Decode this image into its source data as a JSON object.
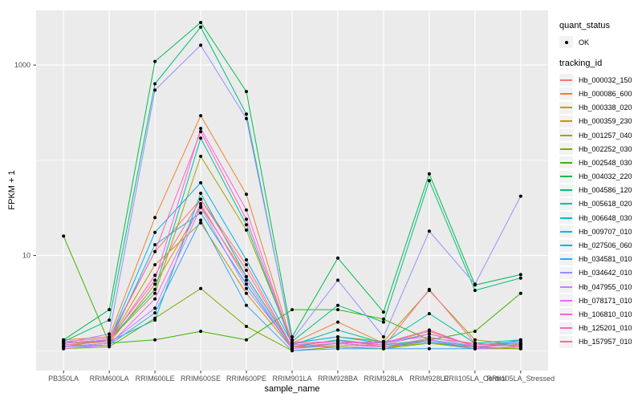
{
  "chart_data": {
    "type": "line",
    "title": "",
    "xlabel": "sample_name",
    "ylabel": "FPKM + 1",
    "y_scale": "log10",
    "ylim": [
      0.62,
      3744
    ],
    "grid": true,
    "panel_bg": "#EBEBEB",
    "gridline_color": "#FFFFFF",
    "point_color": "#000000",
    "tick_label_color": "#4D4D4D",
    "y_major_ticks": [
      {
        "value": 10,
        "label": "10"
      },
      {
        "value": 1000,
        "label": "1000"
      }
    ],
    "y_minor_gridlines": [
      1,
      100
    ],
    "categories": [
      "PB350LA",
      "RRIM600LA",
      "RRIM600LE",
      "RRIM600SE",
      "RRIM600PE",
      "RRIM901LA",
      "RRIM928BA",
      "RRIM928LA",
      "RRIM928LE",
      "RRII105LA_Control",
      "RRII105LA_Stressed"
    ],
    "legend": {
      "position": "right",
      "quant_status_title": "quant_status",
      "quant_status_items": [
        {
          "label": "OK",
          "shape": "point"
        }
      ],
      "tracking_title": "tracking_id"
    },
    "series": [
      {
        "name": "Hb_000032_150",
        "color": "#F8766D",
        "values": [
          1.2,
          1.3,
          11,
          39,
          8,
          1.1,
          1.3,
          1.1,
          1.35,
          1.2,
          1.1
        ]
      },
      {
        "name": "Hb_000086_600",
        "color": "#EA8331",
        "values": [
          1.3,
          1.4,
          25,
          294,
          44,
          1.2,
          2.0,
          1.2,
          1.6,
          1.1,
          1.2
        ]
      },
      {
        "name": "Hb_000338_020",
        "color": "#D89000",
        "values": [
          1.1,
          1.2,
          5,
          33,
          6,
          1.1,
          1.1,
          1.05,
          1.3,
          1.05,
          1.1
        ]
      },
      {
        "name": "Hb_000359_230",
        "color": "#C09B00",
        "values": [
          1.2,
          1.25,
          8,
          22,
          4,
          1.05,
          1.2,
          1.1,
          1.2,
          1.1,
          1.05
        ]
      },
      {
        "name": "Hb_001257_040",
        "color": "#A3A500",
        "values": [
          1.1,
          1.3,
          4,
          110,
          18.5,
          1.2,
          1.4,
          1.25,
          4.3,
          1.3,
          1.15
        ]
      },
      {
        "name": "Hb_002252_030",
        "color": "#7CAE00",
        "values": [
          1.05,
          1.1,
          2.2,
          4.5,
          1.8,
          1.0,
          1.1,
          1.05,
          1.2,
          1.05,
          1.05
        ]
      },
      {
        "name": "Hb_002548_030",
        "color": "#39B600",
        "values": [
          16,
          1.2,
          1.3,
          1.6,
          1.3,
          2.7,
          2.7,
          2.15,
          1.3,
          1.6,
          4.0
        ]
      },
      {
        "name": "Hb_004032_220",
        "color": "#00BB4E",
        "values": [
          1.3,
          2.7,
          1090,
          2800,
          527,
          1.4,
          9.4,
          2.55,
          72,
          4.9,
          6.3
        ]
      },
      {
        "name": "Hb_004586_120",
        "color": "#00BF7D",
        "values": [
          1.25,
          2.1,
          635,
          2500,
          305,
          1.25,
          3.0,
          2.0,
          61,
          4.3,
          5.8
        ]
      },
      {
        "name": "Hb_005618_020",
        "color": "#00C1A3",
        "values": [
          1.2,
          1.3,
          4.4,
          171,
          21,
          1.15,
          1.65,
          1.2,
          2.45,
          1.2,
          1.3
        ]
      },
      {
        "name": "Hb_006648_030",
        "color": "#00BFC4",
        "values": [
          1.15,
          1.25,
          2.1,
          45,
          6,
          1.1,
          1.3,
          1.15,
          1.3,
          1.1,
          1.2
        ]
      },
      {
        "name": "Hb_009707_010",
        "color": "#00BAE0",
        "values": [
          1.1,
          1.2,
          13,
          28,
          5,
          1.05,
          1.2,
          1.1,
          1.25,
          1.05,
          1.1
        ]
      },
      {
        "name": "Hb_027506_060",
        "color": "#00B0F6",
        "values": [
          1.2,
          1.3,
          17.5,
          58,
          9,
          1.2,
          1.4,
          1.2,
          1.5,
          1.15,
          1.25
        ]
      },
      {
        "name": "Hb_034581_010",
        "color": "#35A2FF",
        "values": [
          1.1,
          1.15,
          2.5,
          23.5,
          3,
          1.0,
          1.05,
          1.05,
          1.05,
          1.05,
          1.3
        ]
      },
      {
        "name": "Hb_034642_010",
        "color": "#9590FF",
        "values": [
          1.2,
          1.5,
          545,
          1615,
          274,
          1.3,
          5.5,
          1.4,
          18,
          5.0,
          42
        ]
      },
      {
        "name": "Hb_047955_010",
        "color": "#C77CFF",
        "values": [
          1.1,
          1.2,
          2.8,
          32,
          4.5,
          1.1,
          1.2,
          1.25,
          1.4,
          1.1,
          1.15
        ]
      },
      {
        "name": "Hb_078171_010",
        "color": "#E76BF3",
        "values": [
          1.05,
          1.15,
          3.5,
          35,
          5.5,
          1.05,
          1.15,
          1.1,
          1.3,
          1.05,
          1.1
        ]
      },
      {
        "name": "Hb_106810_010",
        "color": "#FA62DB",
        "values": [
          1.2,
          1.3,
          5.5,
          216,
          30,
          1.15,
          1.25,
          1.2,
          1.65,
          1.1,
          1.15
        ]
      },
      {
        "name": "Hb_125201_010",
        "color": "#FF62BC",
        "values": [
          1.25,
          1.35,
          11,
          200,
          24,
          1.2,
          1.25,
          1.15,
          1.5,
          1.15,
          1.2
        ]
      },
      {
        "name": "Hb_157957_010",
        "color": "#FF6A98",
        "values": [
          1.15,
          1.25,
          6.2,
          39,
          7,
          1.1,
          1.2,
          1.1,
          4.4,
          1.2,
          1.1
        ]
      }
    ]
  }
}
